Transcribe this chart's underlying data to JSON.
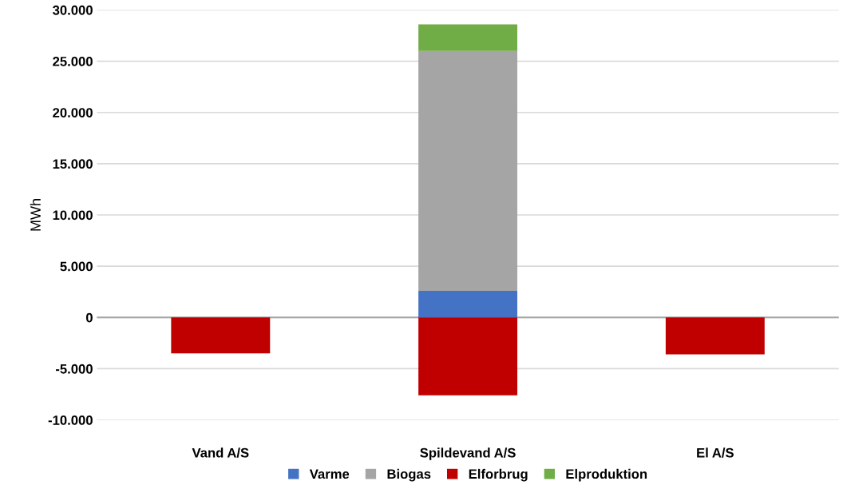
{
  "chart_data": {
    "type": "bar",
    "stacked": true,
    "ylabel": "MWh",
    "categories": [
      "Vand A/S",
      "Spildevand A/S",
      "El A/S"
    ],
    "series": [
      {
        "name": "Varme",
        "color": "#4472c4",
        "values": [
          null,
          2600,
          null
        ]
      },
      {
        "name": "Biogas",
        "color": "#a5a5a5",
        "values": [
          null,
          23400,
          null
        ]
      },
      {
        "name": "Elforbrug",
        "color": "#c00000",
        "values": [
          -3500,
          -7600,
          -3600
        ]
      },
      {
        "name": "Elproduktion",
        "color": "#70ad47",
        "values": [
          null,
          2600,
          null
        ]
      }
    ],
    "ylim": [
      -10000,
      30000
    ],
    "yticks": [
      {
        "value": -10000,
        "label": "-10.000"
      },
      {
        "value": -5000,
        "label": "-5.000"
      },
      {
        "value": 0,
        "label": "0"
      },
      {
        "value": 5000,
        "label": "5.000"
      },
      {
        "value": 10000,
        "label": "10.000"
      },
      {
        "value": 15000,
        "label": "15.000"
      },
      {
        "value": 20000,
        "label": "20.000"
      },
      {
        "value": 25000,
        "label": "25.000"
      },
      {
        "value": 30000,
        "label": "30.000"
      }
    ],
    "grid": "y",
    "legend": "bottom"
  }
}
